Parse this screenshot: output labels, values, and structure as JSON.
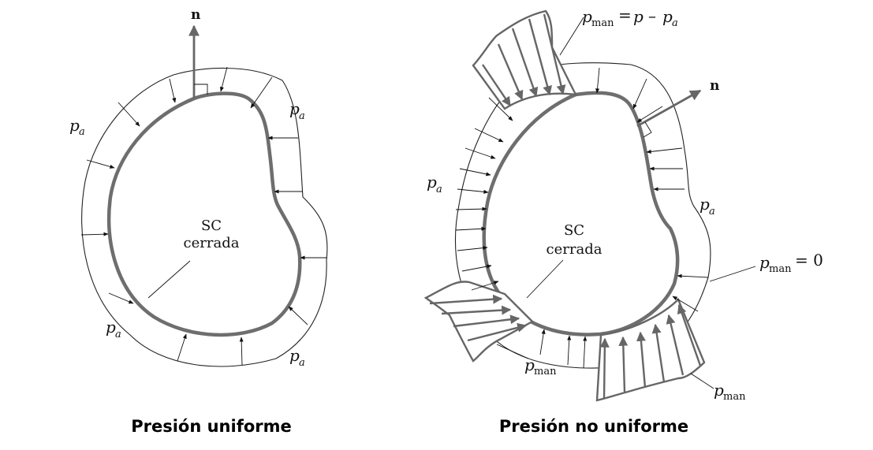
{
  "left_panel": {
    "caption": "Presión uniforme",
    "sc_label_line1": "SC",
    "sc_label_line2": "cerrada",
    "normal_label": "n",
    "pa_labels": [
      "p",
      "p",
      "p",
      "p"
    ],
    "pa_subscript": "a"
  },
  "right_panel": {
    "caption": "Presión no uniforme",
    "sc_label_line1": "SC",
    "sc_label_line2": "cerrada",
    "normal_label": "n",
    "pa_labels": [
      "p",
      "p"
    ],
    "pa_subscript": "a",
    "pman_eq_top": {
      "p": "p",
      "sub": "man",
      "rhs_eq": "=",
      "rhs_p": "p",
      "minus": "–",
      "rhs_pa": "p",
      "rhs_pa_sub": "a"
    },
    "pman_eq_zero": {
      "p": "p",
      "sub": "man",
      "rhs": "=  0"
    },
    "pman_labels": [
      {
        "p": "p",
        "sub": "man"
      },
      {
        "p": "p",
        "sub": "man"
      }
    ]
  }
}
